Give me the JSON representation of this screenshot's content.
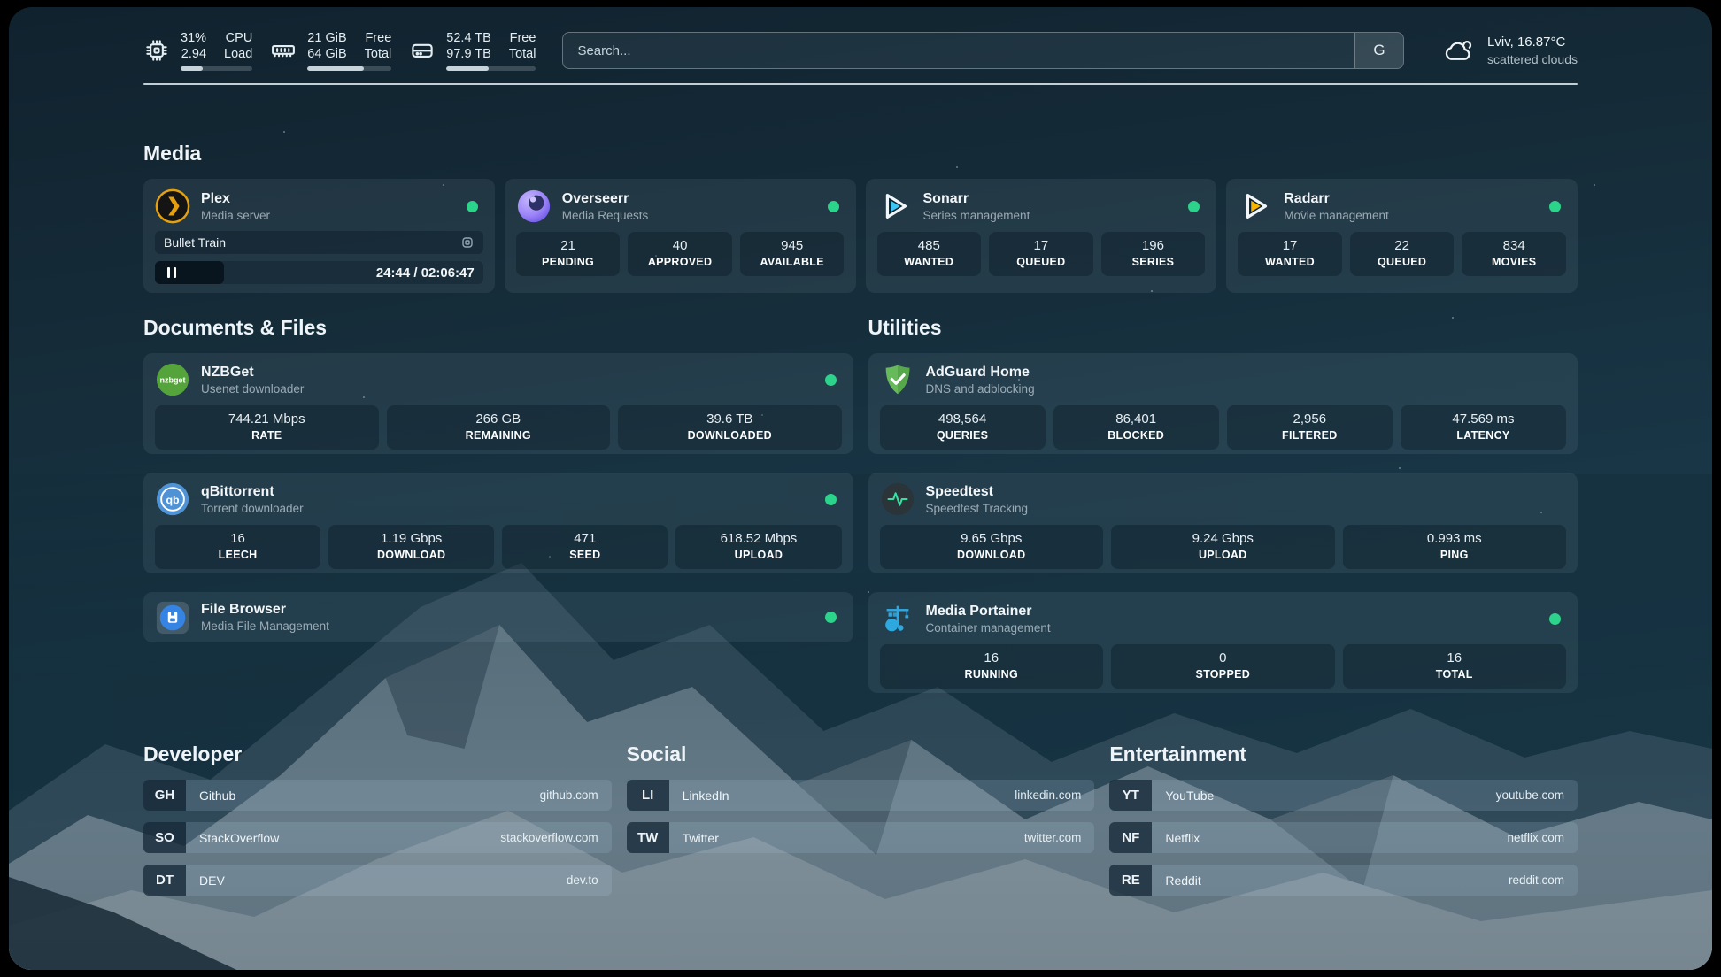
{
  "colors": {
    "status_online": "#2bd48a",
    "accent_plex": "#e5a00d",
    "accent_sonarr": "#3cc5f3",
    "accent_radarr": "#f8b500"
  },
  "header": {
    "resources": [
      {
        "icon": "cpu-icon",
        "value1": "31%",
        "value2": "2.94",
        "label1": "CPU",
        "label2": "Load",
        "progress": 31
      },
      {
        "icon": "ram-icon",
        "value1": "21 GiB",
        "value2": "64 GiB",
        "label1": "Free",
        "label2": "Total",
        "progress": 67
      },
      {
        "icon": "disk-icon",
        "value1": "52.4 TB",
        "value2": "97.9 TB",
        "label1": "Free",
        "label2": "Total",
        "progress": 47
      }
    ],
    "search": {
      "placeholder": "Search...",
      "provider_button": "G"
    },
    "weather": {
      "location_temp": "Lviv, 16.87°C",
      "condition": "scattered clouds"
    }
  },
  "media": {
    "title": "Media",
    "plex": {
      "name": "Plex",
      "subtitle": "Media server",
      "track": "Bullet Train",
      "time": "24:44 / 02:06:47",
      "online": true
    },
    "overseerr": {
      "name": "Overseerr",
      "subtitle": "Media Requests",
      "online": true,
      "stats": [
        {
          "value": "21",
          "label": "PENDING"
        },
        {
          "value": "40",
          "label": "APPROVED"
        },
        {
          "value": "945",
          "label": "AVAILABLE"
        }
      ]
    },
    "sonarr": {
      "name": "Sonarr",
      "subtitle": "Series management",
      "online": true,
      "stats": [
        {
          "value": "485",
          "label": "WANTED"
        },
        {
          "value": "17",
          "label": "QUEUED"
        },
        {
          "value": "196",
          "label": "SERIES"
        }
      ]
    },
    "radarr": {
      "name": "Radarr",
      "subtitle": "Movie management",
      "online": true,
      "stats": [
        {
          "value": "17",
          "label": "WANTED"
        },
        {
          "value": "22",
          "label": "QUEUED"
        },
        {
          "value": "834",
          "label": "MOVIES"
        }
      ]
    }
  },
  "documents_files": {
    "title": "Documents & Files",
    "nzbget": {
      "name": "NZBGet",
      "subtitle": "Usenet downloader",
      "online": true,
      "stats": [
        {
          "value": "744.21 Mbps",
          "label": "RATE"
        },
        {
          "value": "266 GB",
          "label": "REMAINING"
        },
        {
          "value": "39.6 TB",
          "label": "DOWNLOADED"
        }
      ]
    },
    "qbittorrent": {
      "name": "qBittorrent",
      "subtitle": "Torrent downloader",
      "online": true,
      "stats": [
        {
          "value": "16",
          "label": "LEECH"
        },
        {
          "value": "1.19 Gbps",
          "label": "DOWNLOAD"
        },
        {
          "value": "471",
          "label": "SEED"
        },
        {
          "value": "618.52 Mbps",
          "label": "UPLOAD"
        }
      ]
    },
    "filebrowser": {
      "name": "File Browser",
      "subtitle": "Media File Management",
      "online": true
    }
  },
  "utilities": {
    "title": "Utilities",
    "adguard": {
      "name": "AdGuard Home",
      "subtitle": "DNS and adblocking",
      "stats": [
        {
          "value": "498,564",
          "label": "QUERIES"
        },
        {
          "value": "86,401",
          "label": "BLOCKED"
        },
        {
          "value": "2,956",
          "label": "FILTERED"
        },
        {
          "value": "47.569 ms",
          "label": "LATENCY"
        }
      ]
    },
    "speedtest": {
      "name": "Speedtest",
      "subtitle": "Speedtest Tracking",
      "stats": [
        {
          "value": "9.65 Gbps",
          "label": "DOWNLOAD"
        },
        {
          "value": "9.24 Gbps",
          "label": "UPLOAD"
        },
        {
          "value": "0.993 ms",
          "label": "PING"
        }
      ]
    },
    "portainer": {
      "name": "Media Portainer",
      "subtitle": "Container management",
      "online": true,
      "stats": [
        {
          "value": "16",
          "label": "RUNNING"
        },
        {
          "value": "0",
          "label": "STOPPED"
        },
        {
          "value": "16",
          "label": "TOTAL"
        }
      ]
    }
  },
  "bookmarks": {
    "developer": {
      "title": "Developer",
      "items": [
        {
          "abbr": "GH",
          "name": "Github",
          "url": "github.com"
        },
        {
          "abbr": "SO",
          "name": "StackOverflow",
          "url": "stackoverflow.com"
        },
        {
          "abbr": "DT",
          "name": "DEV",
          "url": "dev.to"
        }
      ]
    },
    "social": {
      "title": "Social",
      "items": [
        {
          "abbr": "LI",
          "name": "LinkedIn",
          "url": "linkedin.com"
        },
        {
          "abbr": "TW",
          "name": "Twitter",
          "url": "twitter.com"
        }
      ]
    },
    "entertainment": {
      "title": "Entertainment",
      "items": [
        {
          "abbr": "YT",
          "name": "YouTube",
          "url": "youtube.com"
        },
        {
          "abbr": "NF",
          "name": "Netflix",
          "url": "netflix.com"
        },
        {
          "abbr": "RE",
          "name": "Reddit",
          "url": "reddit.com"
        }
      ]
    }
  },
  "icons": {
    "nzbget_text": "nzbget",
    "qbittorrent_text": "qb"
  }
}
